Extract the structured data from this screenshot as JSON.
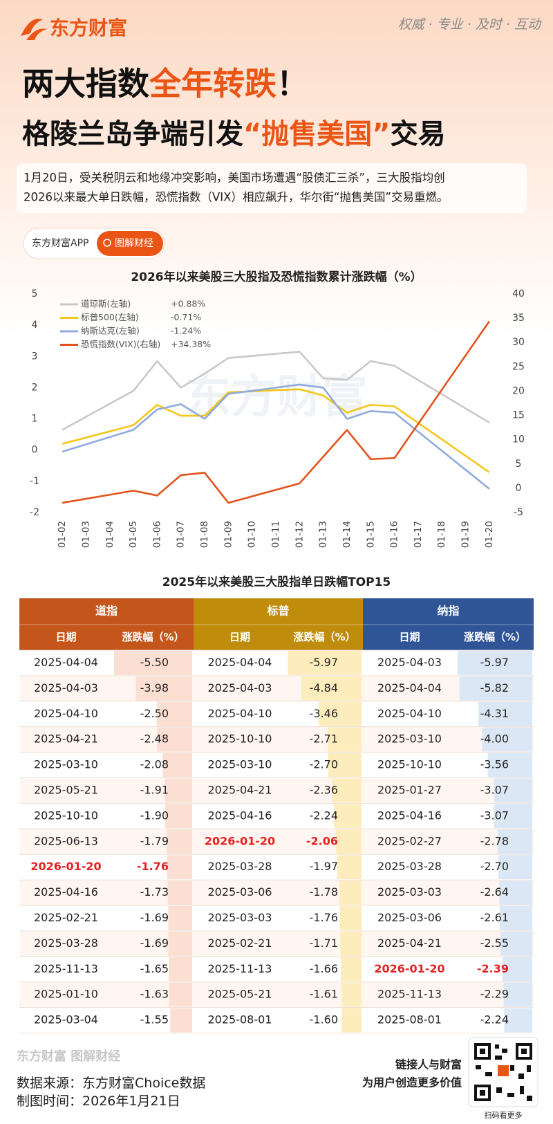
{
  "header": {
    "logo": "东方财富",
    "slogan": "权威 · 专业 · 及时 · 互动",
    "title_line1": [
      "两大指数",
      "全年转跌",
      "！"
    ],
    "title_line2": [
      "格陵兰岛争端引发",
      "“抛售美国”",
      "交易"
    ],
    "intro": [
      "1月20日，受关税阴云和地缘冲突影响，美国市场遭遇“股债汇三杀”，三大股指均创",
      "2026以来最大单日跌幅，恐慌指数（VIX）相应飙升，华尔街“抛售美国”交易重燃。"
    ],
    "tags": [
      "东方财富APP",
      "图解财经"
    ]
  },
  "watermark": "东方财富",
  "chart_data": {
    "type": "line",
    "title": "2026年以来美股三大股指及恐慌指数累计涨跌幅（%）",
    "categories": [
      "01-02",
      "01-03",
      "01-04",
      "01-05",
      "01-06",
      "01-07",
      "01-08",
      "01-09",
      "01-10",
      "01-11",
      "01-12",
      "01-13",
      "01-14",
      "01-15",
      "01-16",
      "01-17",
      "01-18",
      "01-19",
      "01-20"
    ],
    "x": [
      "01-02",
      "01-05",
      "01-06",
      "01-07",
      "01-08",
      "01-09",
      "01-12",
      "01-13",
      "01-14",
      "01-15",
      "01-16",
      "01-20"
    ],
    "ylim": [
      -2,
      5
    ],
    "yticks": [
      -2,
      -1,
      0,
      1,
      2,
      3,
      4,
      5
    ],
    "y2lim": [
      -5,
      40
    ],
    "y2ticks": [
      -5,
      0,
      5,
      10,
      15,
      20,
      25,
      30,
      35,
      40
    ],
    "legend": "upper left",
    "grid": false,
    "series": [
      {
        "name": "道琼斯(左轴)",
        "color": "#c8c8c8",
        "end_label": "+0.88%",
        "values": [
          0.65,
          1.9,
          2.85,
          2.0,
          2.45,
          2.95,
          3.15,
          2.3,
          2.25,
          2.85,
          2.7,
          0.88
        ]
      },
      {
        "name": "标普500(左轴)",
        "color": "#f5c518",
        "end_label": "-0.71%",
        "values": [
          0.2,
          0.8,
          1.45,
          1.1,
          1.1,
          1.85,
          1.95,
          1.75,
          1.2,
          1.45,
          1.4,
          -0.71
        ]
      },
      {
        "name": "纳斯达克(左轴)",
        "color": "#8faadc",
        "end_label": "-1.24%",
        "values": [
          -0.05,
          0.65,
          1.3,
          1.47,
          1.0,
          1.8,
          2.1,
          2.0,
          1.0,
          1.25,
          1.2,
          -1.24
        ]
      },
      {
        "name": "恐慌指数(VIX)(右轴)",
        "color": "#e2531c",
        "end_label": "+34.38%",
        "axis": "y2",
        "values": [
          -3.0,
          -0.5,
          -1.5,
          2.7,
          3.2,
          -3.0,
          1.0,
          6.5,
          12.0,
          6.0,
          6.2,
          34.38
        ]
      }
    ]
  },
  "table": {
    "title": "2025年以来美股三大股指单日跌幅TOP15",
    "groups": [
      {
        "name": "道指",
        "color": "#c4561b",
        "bar_color": "#fbdfd2",
        "columns": [
          "日期",
          "涨跌幅（%）"
        ],
        "highlight_row": 8,
        "rows": [
          [
            "2025-04-04",
            "-5.50"
          ],
          [
            "2025-04-03",
            "-3.98"
          ],
          [
            "2025-04-10",
            "-2.50"
          ],
          [
            "2025-04-21",
            "-2.48"
          ],
          [
            "2025-03-10",
            "-2.08"
          ],
          [
            "2025-05-21",
            "-1.91"
          ],
          [
            "2025-10-10",
            "-1.90"
          ],
          [
            "2025-06-13",
            "-1.79"
          ],
          [
            "2026-01-20",
            "-1.76"
          ],
          [
            "2025-04-16",
            "-1.73"
          ],
          [
            "2025-02-21",
            "-1.69"
          ],
          [
            "2025-03-28",
            "-1.69"
          ],
          [
            "2025-11-13",
            "-1.65"
          ],
          [
            "2025-01-10",
            "-1.63"
          ],
          [
            "2025-03-04",
            "-1.55"
          ]
        ]
      },
      {
        "name": "标普",
        "color": "#bf8c0c",
        "bar_color": "#fdecbc",
        "columns": [
          "日期",
          "涨跌幅（%）"
        ],
        "highlight_row": 7,
        "rows": [
          [
            "2025-04-04",
            "-5.97"
          ],
          [
            "2025-04-03",
            "-4.84"
          ],
          [
            "2025-04-10",
            "-3.46"
          ],
          [
            "2025-10-10",
            "-2.71"
          ],
          [
            "2025-03-10",
            "-2.70"
          ],
          [
            "2025-04-21",
            "-2.36"
          ],
          [
            "2025-04-16",
            "-2.24"
          ],
          [
            "2026-01-20",
            "-2.06"
          ],
          [
            "2025-03-28",
            "-1.97"
          ],
          [
            "2025-03-06",
            "-1.78"
          ],
          [
            "2025-03-03",
            "-1.76"
          ],
          [
            "2025-02-21",
            "-1.71"
          ],
          [
            "2025-11-13",
            "-1.66"
          ],
          [
            "2025-05-21",
            "-1.61"
          ],
          [
            "2025-08-01",
            "-1.60"
          ]
        ]
      },
      {
        "name": "纳指",
        "color": "#2f5597",
        "bar_color": "#dbe7f4",
        "columns": [
          "日期",
          "涨跌幅（%）"
        ],
        "highlight_row": 12,
        "rows": [
          [
            "2025-04-03",
            "-5.97"
          ],
          [
            "2025-04-04",
            "-5.82"
          ],
          [
            "2025-04-10",
            "-4.31"
          ],
          [
            "2025-03-10",
            "-4.00"
          ],
          [
            "2025-10-10",
            "-3.56"
          ],
          [
            "2025-01-27",
            "-3.07"
          ],
          [
            "2025-04-16",
            "-3.07"
          ],
          [
            "2025-02-27",
            "-2.78"
          ],
          [
            "2025-03-28",
            "-2.70"
          ],
          [
            "2025-03-03",
            "-2.64"
          ],
          [
            "2025-03-06",
            "-2.61"
          ],
          [
            "2025-04-21",
            "-2.55"
          ],
          [
            "2026-01-20",
            "-2.39"
          ],
          [
            "2025-11-13",
            "-2.29"
          ],
          [
            "2025-08-01",
            "-2.24"
          ]
        ]
      }
    ]
  },
  "footer": {
    "brand": "东方财富 图解财经",
    "source_label": "数据来源：",
    "source": "东方财富Choice数据",
    "date_label": "制图时间：",
    "date": "2026年1月21日",
    "slogan": [
      "链接人与财富",
      "为用户创造更多价值"
    ],
    "qr_caption": "扫码看更多"
  }
}
